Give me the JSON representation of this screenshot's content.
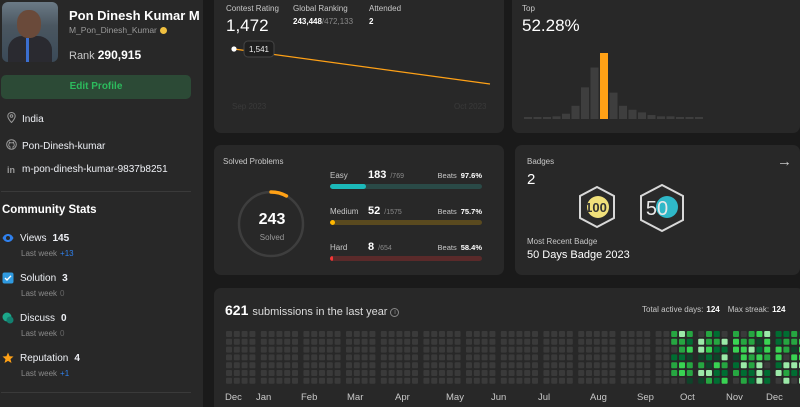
{
  "profile": {
    "name": "Pon Dinesh Kumar M",
    "handle": "M_Pon_Dinesh_Kumar",
    "rank_label": "Rank",
    "rank_value": "290,915",
    "edit_button": "Edit Profile",
    "location": "India",
    "github": "Pon-Dinesh-kumar",
    "linkedin": "m-pon-dinesh-kumar-9837b8251"
  },
  "community": {
    "title": "Community Stats",
    "items": [
      {
        "label": "Views",
        "value": "145",
        "sub": "Last week",
        "delta": "+13",
        "icon": "eye-icon",
        "color": "#2f80ed"
      },
      {
        "label": "Solution",
        "value": "3",
        "sub": "Last week",
        "delta": "0",
        "icon": "solution-icon",
        "color": "#2f9ae0"
      },
      {
        "label": "Discuss",
        "value": "0",
        "sub": "Last week",
        "delta": "0",
        "icon": "discuss-icon",
        "color": "#1ca88a"
      },
      {
        "label": "Reputation",
        "value": "4",
        "sub": "Last week",
        "delta": "+1",
        "icon": "star-icon",
        "color": "#ffa116"
      }
    ]
  },
  "contest": {
    "rating_label": "Contest Rating",
    "rating_value": "1,472",
    "global_label": "Global Ranking",
    "global_value": "243,448",
    "global_total": "/472,133",
    "attended_label": "Attended",
    "attended_value": "2",
    "tooltip": "1,541",
    "x_start": "Sep 2023",
    "x_end": "Oct 2023"
  },
  "top": {
    "label": "Top",
    "value": "52.28%",
    "histogram": [
      1,
      1,
      1,
      2,
      4,
      10,
      24,
      39,
      50,
      20,
      10,
      7,
      5,
      3,
      2,
      2,
      1,
      1,
      1
    ],
    "highlight_index": 8,
    "highlight_color": "#ffa116"
  },
  "solved": {
    "title": "Solved Problems",
    "total": "243",
    "total_label": "Solved",
    "ring_fraction": 0.08,
    "difficulties": [
      {
        "name": "Easy",
        "solved": "183",
        "total": "/769",
        "beats_label": "Beats",
        "beats": "97.6%",
        "fraction": 0.238,
        "color": "#1cbaba",
        "track": "#2a4a47"
      },
      {
        "name": "Medium",
        "solved": "52",
        "total": "/1575",
        "beats_label": "Beats",
        "beats": "75.7%",
        "fraction": 0.033,
        "color": "#ffb700",
        "track": "#5a4a1f"
      },
      {
        "name": "Hard",
        "solved": "8",
        "total": "/654",
        "beats_label": "Beats",
        "beats": "58.4%",
        "fraction": 0.012,
        "color": "#f63737",
        "track": "#5a2a2a"
      }
    ]
  },
  "badges": {
    "title": "Badges",
    "count": "2",
    "recent_label": "Most Recent Badge",
    "recent_value": "50 Days Badge 2023",
    "badge1_text": "100",
    "badge2_text": "50"
  },
  "submissions": {
    "count": "621",
    "label": "submissions in the last year",
    "active_label": "Total active days:",
    "active_value": "124",
    "streak_label": "Max streak:",
    "streak_value": "124",
    "months": [
      "Dec",
      "Jan",
      "Feb",
      "Mar",
      "Apr",
      "May",
      "Jun",
      "Jul",
      "Aug",
      "Sep",
      "Oct",
      "Nov",
      "Dec"
    ]
  }
}
